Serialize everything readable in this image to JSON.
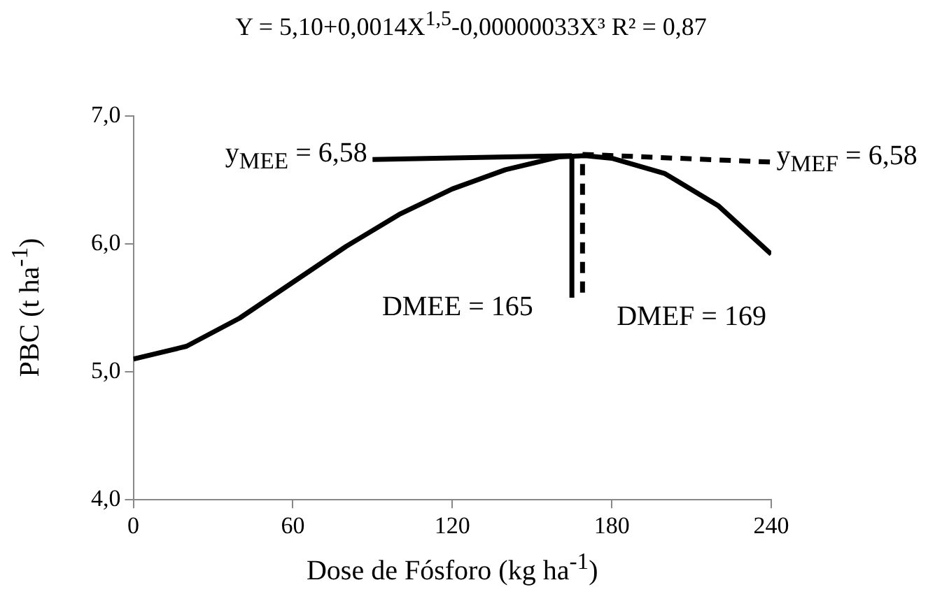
{
  "chart_data": {
    "type": "line",
    "title": "Y = 5,10+0,0014X$^{1,5}$-0,00000033X³  R² = 0,87",
    "xlabel": "Dose de Fósforo (kg ha$^{-1}$)",
    "ylabel": "PBC (t ha$^{-1}$)",
    "series": [
      {
        "color": "#000000",
        "line_style": "solid",
        "x": [
          0,
          20,
          40,
          60,
          80,
          100,
          120,
          140,
          160,
          170,
          180,
          200,
          220,
          240
        ],
        "values": [
          5.1,
          5.2,
          5.42,
          5.7,
          5.98,
          6.23,
          6.43,
          6.58,
          6.68,
          6.69,
          6.67,
          6.55,
          6.3,
          5.92
        ]
      },
      {
        "color": "#000000",
        "line_style": "solid",
        "x": [
          90,
          165
        ],
        "values": [
          6.66,
          6.69
        ]
      },
      {
        "color": "#000000",
        "line_style": "dashed",
        "x": [
          169,
          240
        ],
        "values": [
          6.7,
          6.64
        ]
      },
      {
        "color": "#000000",
        "line_style": "solid",
        "x": [
          165,
          165
        ],
        "values": [
          5.58,
          6.69
        ]
      },
      {
        "color": "#000000",
        "line_style": "dashed",
        "x": [
          169,
          169
        ],
        "values": [
          5.62,
          6.7
        ]
      }
    ],
    "annotations": [
      "y$_{MEE}$ = 6,58",
      "y$_{MEF}$ = 6,58",
      "DMEE = 165",
      "DMEF = 169"
    ],
    "xlim": [
      0,
      240
    ],
    "xticks": [
      0,
      60,
      120,
      180,
      240
    ],
    "ylim": [
      4,
      7
    ],
    "yticks": [
      {
        "value": 4,
        "label": "4,0"
      },
      {
        "value": 5,
        "label": "5,0"
      },
      {
        "value": 6,
        "label": "6,0"
      },
      {
        "value": 7,
        "label": "7,0"
      }
    ],
    "grid": false,
    "legend": false,
    "marker": "none"
  }
}
